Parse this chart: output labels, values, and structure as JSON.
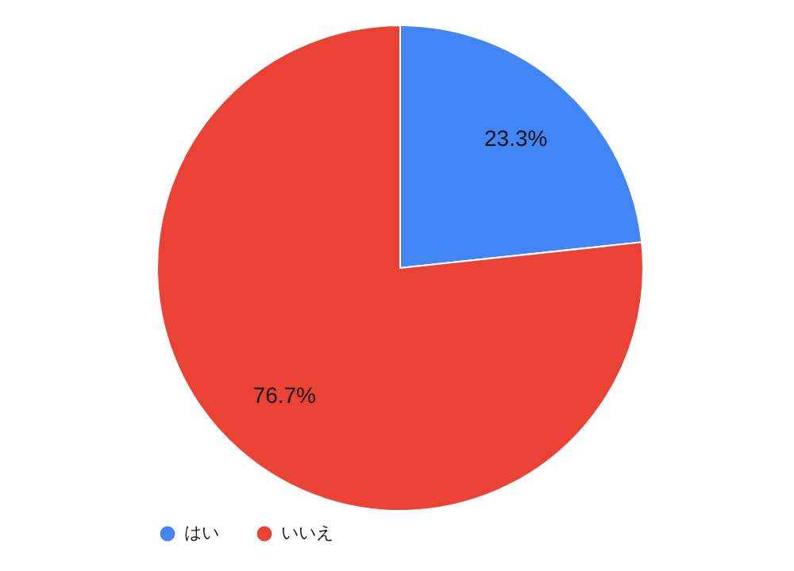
{
  "chart_data": {
    "type": "pie",
    "categories": [
      "はい",
      "いいえ"
    ],
    "values": [
      23.3,
      76.7
    ],
    "colors": [
      "#4285f4",
      "#ea4335"
    ],
    "value_labels": [
      "23.3%",
      "76.7%"
    ],
    "legend": "bottom"
  }
}
